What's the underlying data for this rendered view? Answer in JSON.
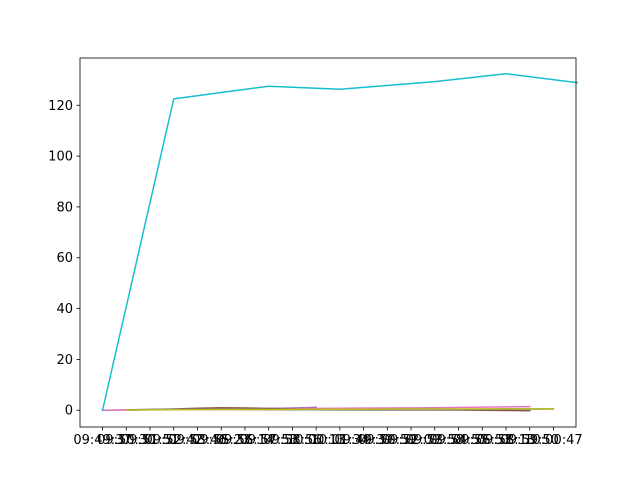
{
  "chart_data": {
    "type": "line",
    "title": "",
    "xlabel": "",
    "ylabel": "",
    "x_tick_labels": [
      "09:49:37",
      "09:50:30",
      "09:51:51",
      "09:52:42",
      "09:53:46",
      "09:55:23",
      "09:56:14",
      "09:57:53",
      "09:58:56",
      "10:00:13",
      "10:01:34",
      "09:49:39",
      "09:50:59",
      "09:52:09",
      "09:53:58",
      "09:54:55",
      "09:56:53",
      "09:58:13",
      "09:59:50",
      "10:00:47"
    ],
    "y_ticks": [
      0,
      20,
      40,
      60,
      80,
      100,
      120
    ],
    "ylim": [
      -6.6,
      138.6
    ],
    "xlim": [
      -0.95,
      19.95
    ],
    "grid": false,
    "series": [
      {
        "x": [
          0,
          1,
          2,
          3,
          4,
          5,
          6,
          7,
          8,
          9
        ],
        "values": [
          0,
          0.1,
          0.2,
          0.25,
          0.3,
          0.4,
          0.5,
          0.7,
          0.9,
          1.1
        ],
        "color": "#9467bd"
      },
      {
        "x": [
          0,
          2,
          4,
          6,
          8,
          10,
          12,
          14,
          16,
          18
        ],
        "values": [
          0,
          0.2,
          0.4,
          0.6,
          0.7,
          0.8,
          0.9,
          1.0,
          1.2,
          1.4
        ],
        "color": "#e377c2"
      },
      {
        "x": [
          1,
          2,
          3,
          4,
          5,
          6,
          7,
          8,
          9,
          10,
          11,
          12,
          13,
          14,
          15,
          16,
          17,
          18
        ],
        "values": [
          0.1,
          0.3,
          0.5,
          0.8,
          1.0,
          0.9,
          0.7,
          0.5,
          0.4,
          0.3,
          0.3,
          0.2,
          0.2,
          0.1,
          0.1,
          0.0,
          -0.1,
          -0.2
        ],
        "color": "#8c564b"
      },
      {
        "x": [
          1,
          3,
          5,
          7,
          9,
          11,
          13,
          15,
          17,
          19
        ],
        "values": [
          0.2,
          0.4,
          0.3,
          0.2,
          0.2,
          0.1,
          0.1,
          0.3,
          0.4,
          0.5
        ],
        "color": "#7f7f7f"
      },
      {
        "x": [
          1,
          3,
          5,
          7,
          9,
          11,
          13,
          15,
          17,
          19
        ],
        "values": [
          0.1,
          0.2,
          0.3,
          0.3,
          0.4,
          0.4,
          0.5,
          0.5,
          0.6,
          0.6
        ],
        "color": "#bcbd22"
      },
      {
        "x": [
          0,
          3,
          7,
          10,
          14,
          17,
          20
        ],
        "values": [
          0,
          122.5,
          127.5,
          126.3,
          129.3,
          132.4,
          128.9
        ],
        "color": "#17becf"
      }
    ]
  }
}
